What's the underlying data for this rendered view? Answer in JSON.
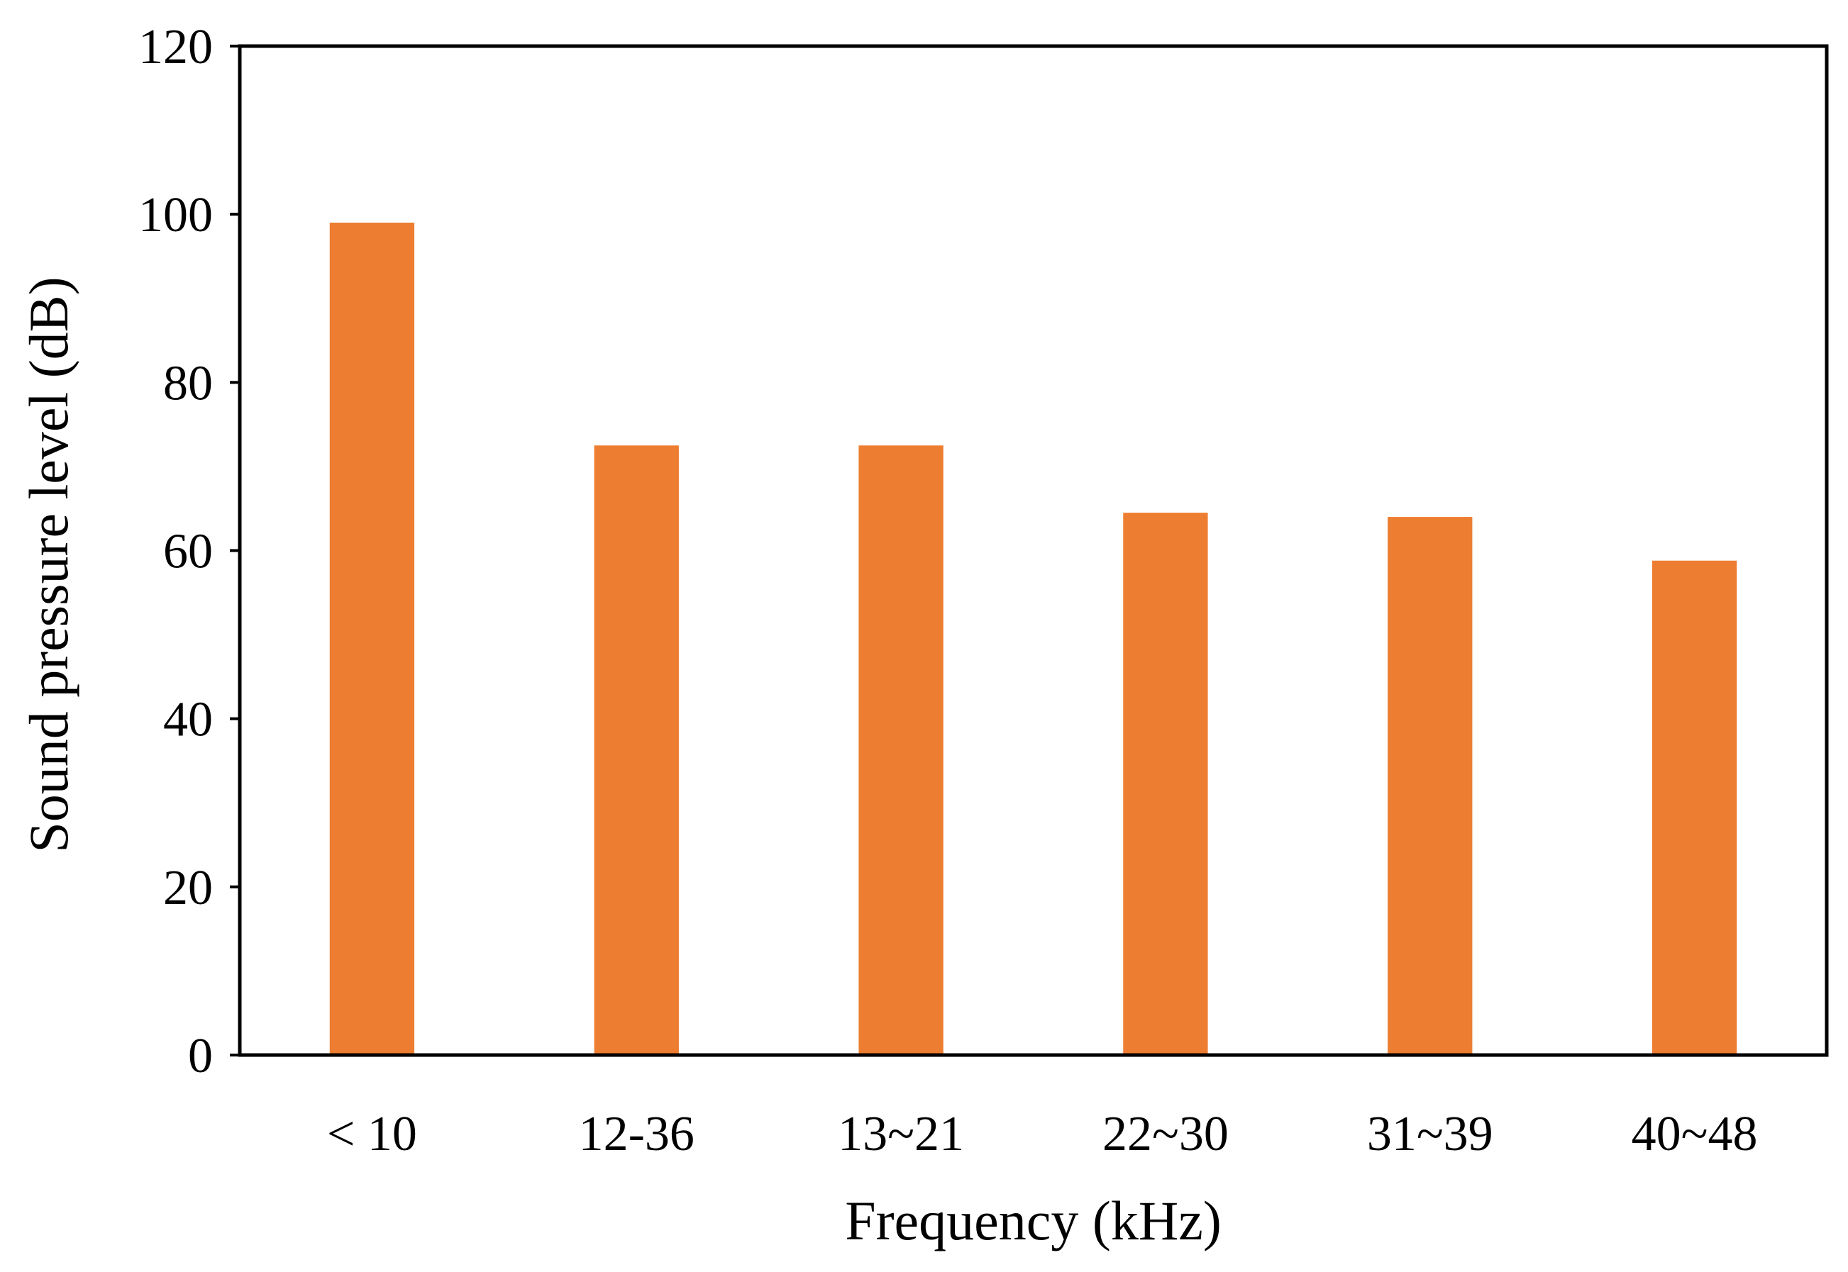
{
  "colors": {
    "bar": "#ED7D31",
    "axis": "#000000",
    "background": "#FFFFFF"
  },
  "chart_data": {
    "type": "bar",
    "title": "",
    "xlabel": "Frequency (kHz)",
    "ylabel": "Sound pressure level (dB)",
    "categories": [
      "< 10",
      "12-36",
      "13~21",
      "22~30",
      "31~39",
      "40~48"
    ],
    "values": [
      99,
      72.5,
      72.5,
      64.5,
      64,
      58.8
    ],
    "ylim": [
      0,
      120
    ],
    "yticks": [
      0,
      20,
      40,
      60,
      80,
      100,
      120
    ],
    "grid": false,
    "legend": "none"
  }
}
